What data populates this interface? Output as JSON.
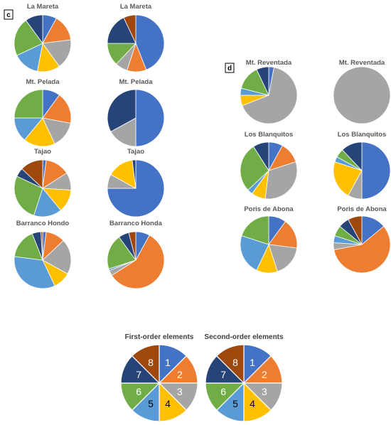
{
  "panels": [
    {
      "letter": "c"
    },
    {
      "letter": "d"
    }
  ],
  "palette": {
    "1": "#4472C4",
    "2": "#ED7D31",
    "3": "#A5A5A5",
    "4": "#FFC000",
    "5": "#5B9BD5",
    "6": "#70AD47",
    "7": "#264478",
    "8": "#9E480E"
  },
  "chart_data": [
    {
      "type": "pie",
      "panel": "c",
      "title": "La Mareta",
      "element_order": "first",
      "values": [
        8,
        15,
        17,
        13,
        15,
        22,
        10,
        0
      ]
    },
    {
      "type": "pie",
      "panel": "c",
      "title": "La Mareta",
      "element_order": "second",
      "values": [
        44,
        11,
        7,
        0,
        0,
        13,
        18,
        7
      ]
    },
    {
      "type": "pie",
      "panel": "c",
      "title": "Mt. Pelada",
      "element_order": "first",
      "values": [
        10,
        18,
        15,
        18,
        14,
        25,
        0,
        0
      ]
    },
    {
      "type": "pie",
      "panel": "c",
      "title": "Mt. Pelada",
      "element_order": "second",
      "values": [
        50,
        0,
        17,
        0,
        0,
        0,
        33,
        0
      ]
    },
    {
      "type": "pie",
      "panel": "c",
      "title": "Tajao",
      "element_order": "first",
      "values": [
        2,
        14,
        10,
        13,
        16,
        27,
        5,
        13
      ]
    },
    {
      "type": "pie",
      "panel": "c",
      "title": "Tajao",
      "element_order": "second",
      "values": [
        75,
        0,
        8,
        15,
        0,
        0,
        2,
        0
      ]
    },
    {
      "type": "pie",
      "panel": "c",
      "title": "Barranco Hondo",
      "element_order": "first",
      "values": [
        2,
        11,
        20,
        10,
        34,
        17,
        5,
        1
      ]
    },
    {
      "type": "pie",
      "panel": "c",
      "title": "Barranco Honda",
      "element_order": "second",
      "values": [
        8,
        58,
        3,
        0,
        1,
        20,
        6,
        4
      ]
    },
    {
      "type": "pie",
      "panel": "d",
      "title": "Mt. Reventada",
      "element_order": "first",
      "values": [
        3,
        0,
        66,
        6,
        4,
        14,
        7,
        0
      ]
    },
    {
      "type": "pie",
      "panel": "d",
      "title": "Mt. Reventada",
      "element_order": "second",
      "values": [
        0,
        0,
        100,
        0,
        0,
        0,
        0,
        0
      ]
    },
    {
      "type": "pie",
      "panel": "d",
      "title": "Los Blanquitos",
      "element_order": "first",
      "values": [
        8,
        12,
        32,
        8,
        3,
        28,
        9,
        0
      ]
    },
    {
      "type": "pie",
      "panel": "d",
      "title": "Los Blanquitos",
      "element_order": "second",
      "values": [
        50,
        0,
        8,
        22,
        3,
        5,
        12,
        0
      ]
    },
    {
      "type": "pie",
      "panel": "d",
      "title": "Poris de Abona",
      "element_order": "first",
      "values": [
        10,
        17,
        18,
        12,
        23,
        20,
        0,
        0
      ]
    },
    {
      "type": "pie",
      "panel": "d",
      "title": "Poris de Abona",
      "element_order": "second",
      "values": [
        14,
        58,
        4,
        0,
        4,
        6,
        6,
        8
      ]
    },
    {
      "type": "pie",
      "panel": "key",
      "title": "First-order elements",
      "labels": [
        "1",
        "2",
        "3",
        "4",
        "5",
        "6",
        "7",
        "8"
      ],
      "values": [
        1,
        1,
        1,
        1,
        1,
        1,
        1,
        1
      ]
    },
    {
      "type": "pie",
      "panel": "key",
      "title": "Second-order elements",
      "labels": [
        "1",
        "2",
        "3",
        "4",
        "5",
        "6",
        "7",
        "8"
      ],
      "values": [
        1,
        1,
        1,
        1,
        1,
        1,
        1,
        1
      ]
    }
  ]
}
